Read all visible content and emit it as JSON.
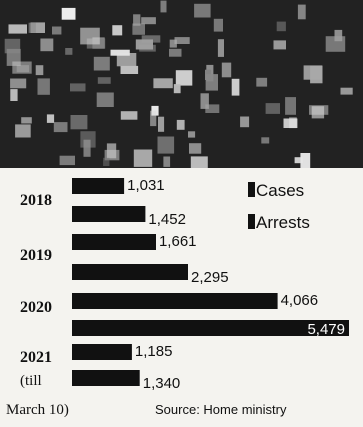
{
  "photo": {
    "description_icon": "crowd-photo"
  },
  "chart_data": {
    "type": "bar",
    "orientation": "horizontal",
    "categories": [
      "2018",
      "2019",
      "2020",
      "2021"
    ],
    "category_sublabels": [
      "",
      "",
      "",
      "(till"
    ],
    "series": [
      {
        "name": "Cases",
        "values": [
          1031,
          1661,
          4066,
          1185
        ],
        "labels": [
          "1,031",
          "1,661",
          "4,066",
          "1,185"
        ],
        "color": "#111111"
      },
      {
        "name": "Arrests",
        "values": [
          1452,
          2295,
          5479,
          1340
        ],
        "labels": [
          "1,452",
          "2,295",
          "5,479",
          "1,340"
        ],
        "color": "#111111"
      }
    ],
    "xlim": [
      0,
      5479
    ],
    "grid": false,
    "legend": "top-right"
  },
  "footer": {
    "note": "March 10)",
    "source": "Source: Home ministry"
  },
  "colors": {
    "bar": "#111111",
    "background": "#f4f3ef"
  }
}
